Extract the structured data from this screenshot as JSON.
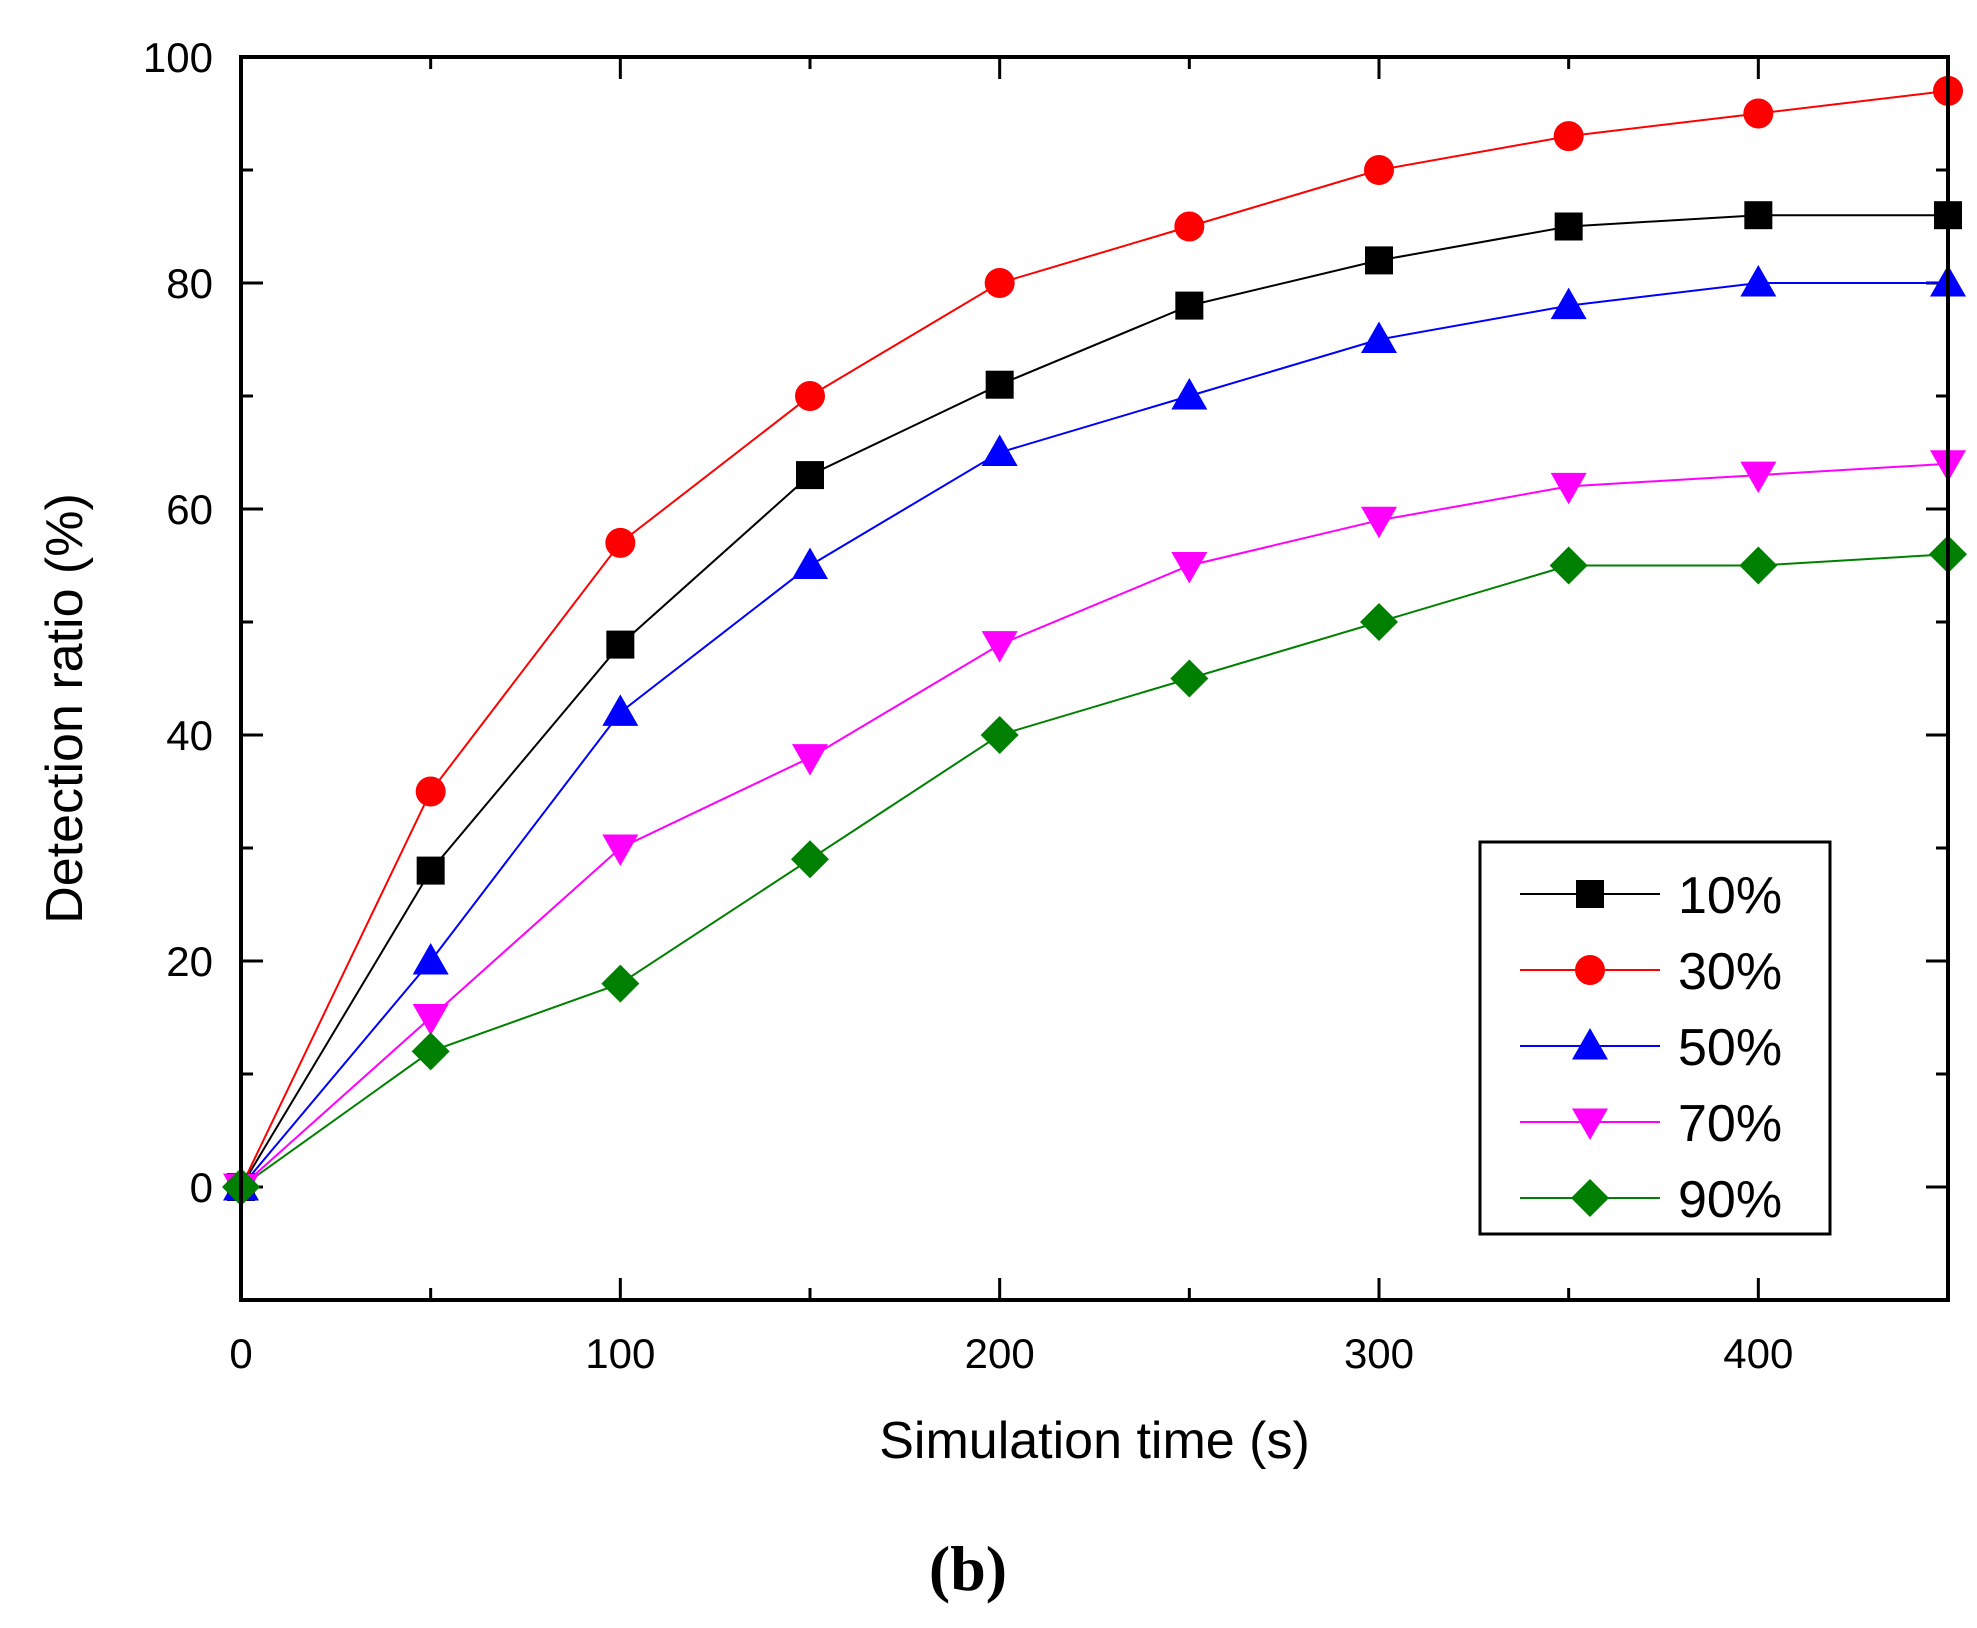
{
  "chart_data": {
    "type": "line",
    "x": [
      0,
      50,
      100,
      150,
      200,
      250,
      300,
      350,
      400,
      450
    ],
    "series": [
      {
        "name": "10%",
        "color": "#000000",
        "marker": "square",
        "values": [
          0,
          28,
          48,
          63,
          71,
          78,
          82,
          85,
          86,
          86
        ]
      },
      {
        "name": "30%",
        "color": "#ff0000",
        "marker": "circle",
        "values": [
          0,
          35,
          57,
          70,
          80,
          85,
          90,
          93,
          95,
          97
        ]
      },
      {
        "name": "50%",
        "color": "#0000ff",
        "marker": "triangle-up",
        "values": [
          0,
          20,
          42,
          55,
          65,
          70,
          75,
          78,
          80,
          80
        ]
      },
      {
        "name": "70%",
        "color": "#ff00ff",
        "marker": "triangle-down",
        "values": [
          0,
          15,
          30,
          38,
          48,
          55,
          59,
          62,
          63,
          64
        ]
      },
      {
        "name": "90%",
        "color": "#008000",
        "marker": "diamond",
        "values": [
          0,
          12,
          18,
          29,
          40,
          45,
          50,
          55,
          55,
          56
        ]
      }
    ],
    "xlabel": "Simulation time (s)",
    "ylabel": "Detection ratio (%)",
    "xlim": [
      0,
      450
    ],
    "ylim": [
      -10,
      100
    ],
    "xticks": [
      "0",
      "100",
      "200",
      "300",
      "400"
    ],
    "yticks": [
      "0",
      "20",
      "40",
      "60",
      "80",
      "100"
    ],
    "legend_position": "bottom-right",
    "caption": "(b)"
  }
}
